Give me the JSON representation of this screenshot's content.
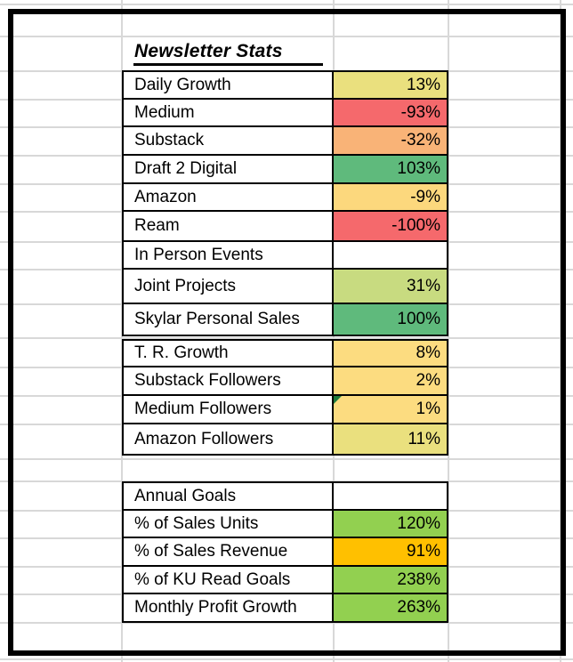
{
  "title": "Newsletter Stats",
  "colors": {
    "table_border": "#000000",
    "gridline": "#d8d8d8",
    "error_flag_green": "#1e7b3c",
    "scale_red": "#f5696c",
    "scale_orange": "#f9b377",
    "scale_gold": "#fcd87d",
    "scale_yellow": "#fcdc80",
    "scale_olive": "#eae07e",
    "scale_yellowgreen": "#c8db80",
    "scale_green": "#5fba7c",
    "solid_green": "#92d050",
    "solid_amber": "#ffc000"
  },
  "sections": [
    {
      "name": "newsletter-stats",
      "rows": [
        {
          "label": "Daily Growth",
          "value": "13%",
          "bg": "#eae07e"
        },
        {
          "label": "Medium",
          "value": "-93%",
          "bg": "#f5696c"
        },
        {
          "label": "Substack",
          "value": "-32%",
          "bg": "#f9b377"
        },
        {
          "label": "Draft 2 Digital",
          "value": "103%",
          "bg": "#5fba7c"
        },
        {
          "label": "Amazon",
          "value": "-9%",
          "bg": "#fcd87d"
        },
        {
          "label": "Ream",
          "value": "-100%",
          "bg": "#f5696c"
        },
        {
          "label": "In Person Events",
          "value": "",
          "bg": "#ffffff"
        },
        {
          "label": "Joint Projects",
          "value": "31%",
          "bg": "#c8db80"
        },
        {
          "label": "Skylar Personal Sales",
          "value": "100%",
          "bg": "#5fba7c"
        }
      ]
    },
    {
      "name": "follower-stats",
      "rows": [
        {
          "label": "T. R. Growth",
          "value": "8%",
          "bg": "#fcdc80"
        },
        {
          "label": "Substack Followers",
          "value": "2%",
          "bg": "#fcdc80"
        },
        {
          "label": "Medium Followers",
          "value": "1%",
          "bg": "#fcdc80",
          "corner_flag": true
        },
        {
          "label": "Amazon Followers",
          "value": "11%",
          "bg": "#eae07e"
        }
      ]
    },
    {
      "name": "annual-goals",
      "rows": [
        {
          "label": "Annual Goals",
          "value": "",
          "bg": "#ffffff"
        },
        {
          "label": "% of Sales Units",
          "value": "120%",
          "bg": "#92d050"
        },
        {
          "label": "% of Sales Revenue",
          "value": "91%",
          "bg": "#ffc000"
        },
        {
          "label": "% of KU Read Goals",
          "value": "238%",
          "bg": "#92d050"
        },
        {
          "label": "Monthly Profit Growth",
          "value": "263%",
          "bg": "#92d050"
        }
      ]
    }
  ]
}
